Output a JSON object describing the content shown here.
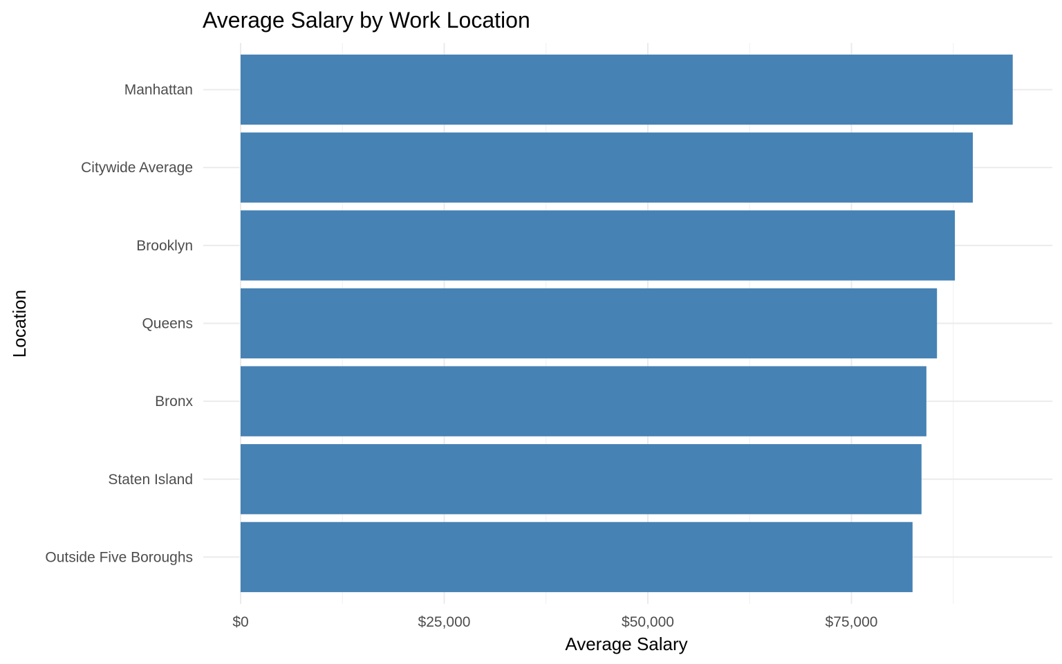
{
  "chart_data": {
    "type": "bar",
    "orientation": "horizontal",
    "title": "Average Salary by Work Location",
    "xlabel": "Average Salary",
    "ylabel": "Location",
    "categories": [
      "Manhattan",
      "Citywide Average",
      "Brooklyn",
      "Queens",
      "Bronx",
      "Staten Island",
      "Outside Five Boroughs"
    ],
    "values": [
      94800,
      89900,
      87700,
      85500,
      84200,
      83600,
      82500
    ],
    "xlim": [
      0,
      99300
    ],
    "xticks": [
      0,
      25000,
      50000,
      75000
    ],
    "xtick_labels": [
      "$0",
      "$25,000",
      "$50,000",
      "$75,000"
    ],
    "grid": true,
    "bar_color": "#4682B4"
  }
}
